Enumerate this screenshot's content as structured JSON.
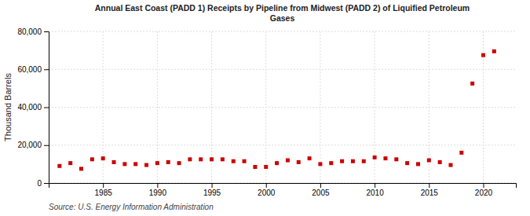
{
  "chart_data": {
    "type": "scatter",
    "title": "Annual East Coast (PADD 1) Receipts by Pipeline from Midwest (PADD 2) of Liquified Petroleum\nGases",
    "y_label": "Thousand Barrels",
    "annotations": [
      "Source: U.S. Energy Information Administration"
    ],
    "x": [
      1981,
      1982,
      1983,
      1984,
      1985,
      1986,
      1987,
      1988,
      1989,
      1990,
      1991,
      1992,
      1993,
      1994,
      1995,
      1996,
      1997,
      1998,
      1999,
      2000,
      2001,
      2002,
      2003,
      2004,
      2005,
      2006,
      2007,
      2008,
      2009,
      2010,
      2011,
      2012,
      2013,
      2014,
      2015,
      2016,
      2017,
      2018,
      2019,
      2020,
      2021
    ],
    "values": [
      9000,
      10500,
      7500,
      12500,
      13000,
      11000,
      10000,
      10000,
      9500,
      10500,
      11000,
      10500,
      12500,
      12500,
      12500,
      12500,
      11500,
      11500,
      8500,
      8500,
      10500,
      12000,
      11000,
      13000,
      10000,
      10500,
      11500,
      11500,
      11500,
      13500,
      13000,
      12500,
      10500,
      10000,
      12000,
      11000,
      9500,
      16000,
      52500,
      67500,
      69500
    ],
    "color": "#cc0000",
    "marker": "square",
    "xlim": [
      1980,
      2023
    ],
    "xticks": [
      1985,
      1990,
      1995,
      2000,
      2005,
      2010,
      2015,
      2020
    ],
    "ylim": [
      0,
      80000
    ],
    "yticks": [
      0,
      {
        "value": 20000,
        "label": "20,000"
      },
      {
        "value": 40000,
        "label": "40,000"
      },
      {
        "value": 60000,
        "label": "60,000"
      },
      {
        "value": 80000,
        "label": "80,000"
      }
    ],
    "grid": true
  }
}
